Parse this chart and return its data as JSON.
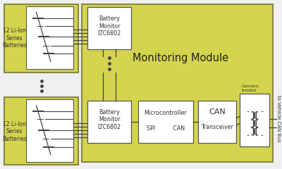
{
  "olive": "#d4d44e",
  "white": "#ffffff",
  "black": "#333333",
  "bg": "#f0f0f0",
  "title": "Monitoring Module",
  "battery_label": "12 Li-Ion\nSeries\nBatteries",
  "bm_label1": "Battery\nMonitor\nLTC6802",
  "bm_label2": "Battery\nMonitor\nLTC6802",
  "uc_label_top": "Microcontroller",
  "uc_label_bot": "SPI          CAN",
  "can_label_top": "CAN",
  "can_label_bot": "Transceiver",
  "galv_label": "Galvanic\nIsolator",
  "bus_label": "to Vehicle CAN Bus"
}
